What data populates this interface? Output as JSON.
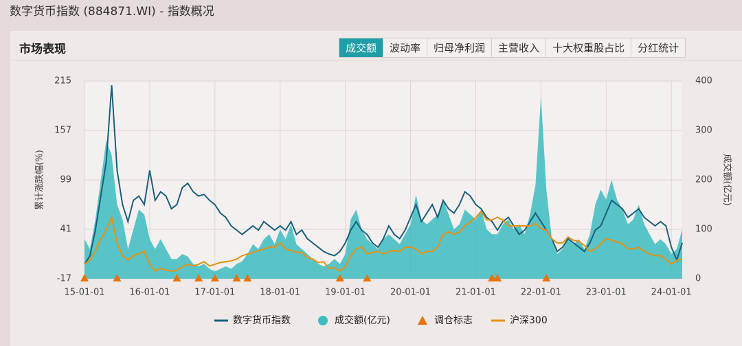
{
  "page_title": "数字货币指数 (884871.WI) - 指数概况",
  "panel_title": "市场表现",
  "tabs": [
    "成交额",
    "波动率",
    "归母净利润",
    "主营收入",
    "十大权重股占比",
    "分红统计"
  ],
  "chart_data": {
    "type": "line",
    "ylabel": "累计涨跌幅(%)",
    "y2label": "成交额(亿元)",
    "ylim": [
      -17,
      215
    ],
    "yticks": [
      -17,
      41,
      99,
      157,
      215
    ],
    "y2lim": [
      0,
      400
    ],
    "y2ticks": [
      0,
      100,
      200,
      300,
      400
    ],
    "grid": true,
    "x": [
      "15-01-01",
      "15-02-01",
      "15-03-01",
      "15-04-01",
      "15-05-01",
      "15-06-01",
      "15-07-01",
      "15-08-01",
      "15-09-01",
      "15-10-01",
      "15-11-01",
      "15-12-01",
      "16-01-01",
      "16-02-01",
      "16-03-01",
      "16-04-01",
      "16-05-01",
      "16-06-01",
      "16-07-01",
      "16-08-01",
      "16-09-01",
      "16-10-01",
      "16-11-01",
      "16-12-01",
      "17-01-01",
      "17-02-01",
      "17-03-01",
      "17-04-01",
      "17-05-01",
      "17-06-01",
      "17-07-01",
      "17-08-01",
      "17-09-01",
      "17-10-01",
      "17-11-01",
      "17-12-01",
      "18-01-01",
      "18-02-01",
      "18-03-01",
      "18-04-01",
      "18-05-01",
      "18-06-01",
      "18-07-01",
      "18-08-01",
      "18-09-01",
      "18-10-01",
      "18-11-01",
      "18-12-01",
      "19-01-01",
      "19-02-01",
      "19-03-01",
      "19-04-01",
      "19-05-01",
      "19-06-01",
      "19-07-01",
      "19-08-01",
      "19-09-01",
      "19-10-01",
      "19-11-01",
      "19-12-01",
      "20-01-01",
      "20-02-01",
      "20-03-01",
      "20-04-01",
      "20-05-01",
      "20-06-01",
      "20-07-01",
      "20-08-01",
      "20-09-01",
      "20-10-01",
      "20-11-01",
      "20-12-01",
      "21-01-01",
      "21-02-01",
      "21-03-01",
      "21-04-01",
      "21-05-01",
      "21-06-01",
      "21-07-01",
      "21-08-01",
      "21-09-01",
      "21-10-01",
      "21-11-01",
      "21-12-01",
      "22-01-01",
      "22-02-01",
      "22-03-01",
      "22-04-01",
      "22-05-01",
      "22-06-01",
      "22-07-01",
      "22-08-01",
      "22-09-01",
      "22-10-01",
      "22-11-01",
      "22-12-01",
      "23-01-01",
      "23-02-01",
      "23-03-01",
      "23-04-01",
      "23-05-01",
      "23-06-01",
      "23-07-01",
      "23-08-01",
      "23-09-01",
      "23-10-01",
      "23-11-01",
      "23-12-01",
      "24-01-01",
      "24-02-01",
      "24-03-01"
    ],
    "xticks": [
      "15-01-01",
      "16-01-01",
      "17-01-01",
      "18-01-01",
      "19-01-01",
      "20-01-01",
      "21-01-01",
      "22-01-01",
      "23-01-01",
      "24-01-01"
    ],
    "series": [
      {
        "name": "数字货币指数",
        "color": "#1b5f7c",
        "kind": "line",
        "values": [
          0,
          10,
          40,
          80,
          120,
          210,
          110,
          70,
          50,
          75,
          80,
          70,
          110,
          75,
          85,
          80,
          65,
          70,
          90,
          95,
          85,
          80,
          82,
          75,
          70,
          60,
          55,
          45,
          40,
          35,
          40,
          45,
          40,
          50,
          45,
          40,
          45,
          40,
          50,
          35,
          40,
          30,
          25,
          20,
          15,
          12,
          10,
          15,
          25,
          40,
          50,
          40,
          35,
          25,
          20,
          30,
          45,
          35,
          30,
          40,
          55,
          70,
          50,
          60,
          70,
          55,
          75,
          65,
          60,
          70,
          85,
          80,
          70,
          65,
          55,
          50,
          40,
          50,
          55,
          45,
          35,
          40,
          50,
          60,
          50,
          40,
          30,
          15,
          20,
          30,
          25,
          20,
          15,
          25,
          40,
          45,
          60,
          75,
          70,
          65,
          55,
          60,
          65,
          55,
          50,
          45,
          50,
          45,
          20,
          5,
          25
        ]
      },
      {
        "name": "成交额(亿元)",
        "color": "#3dbcc0",
        "kind": "area",
        "axis": "y2",
        "values": [
          80,
          60,
          120,
          200,
          280,
          250,
          150,
          120,
          60,
          100,
          140,
          130,
          80,
          60,
          80,
          60,
          40,
          40,
          50,
          45,
          30,
          25,
          30,
          20,
          15,
          20,
          25,
          20,
          30,
          35,
          50,
          70,
          60,
          80,
          90,
          70,
          100,
          80,
          110,
          70,
          60,
          50,
          40,
          30,
          25,
          30,
          40,
          30,
          50,
          120,
          140,
          100,
          80,
          70,
          60,
          80,
          90,
          80,
          70,
          90,
          110,
          170,
          120,
          110,
          120,
          130,
          160,
          130,
          100,
          110,
          140,
          130,
          120,
          140,
          100,
          90,
          90,
          110,
          120,
          100,
          110,
          90,
          130,
          190,
          370,
          180,
          80,
          50,
          60,
          80,
          70,
          80,
          60,
          90,
          150,
          180,
          160,
          200,
          160,
          140,
          110,
          120,
          150,
          110,
          90,
          70,
          80,
          70,
          50,
          60,
          100
        ]
      },
      {
        "name": "调仓标志",
        "color": "#e8730c",
        "kind": "marker",
        "x": [
          "15-01-01",
          "15-07-01",
          "16-06-01",
          "16-10-01",
          "17-01-01",
          "17-05-01",
          "17-07-01",
          "18-12-01",
          "19-05-01",
          "21-04-01",
          "21-05-01",
          "22-02-01"
        ]
      },
      {
        "name": "沪深300",
        "color": "#e8910f",
        "kind": "line",
        "values": [
          0,
          5,
          15,
          30,
          40,
          55,
          25,
          10,
          5,
          10,
          12,
          15,
          0,
          -8,
          -5,
          -7,
          -8,
          -7,
          -3,
          0,
          -2,
          0,
          3,
          -2,
          0,
          2,
          3,
          4,
          6,
          10,
          12,
          14,
          16,
          18,
          20,
          20,
          25,
          18,
          16,
          14,
          14,
          8,
          6,
          2,
          3,
          -5,
          -4,
          -8,
          -3,
          10,
          18,
          20,
          12,
          14,
          15,
          12,
          15,
          16,
          15,
          20,
          20,
          18,
          12,
          15,
          15,
          20,
          35,
          38,
          35,
          38,
          45,
          50,
          55,
          62,
          52,
          52,
          55,
          52,
          45,
          45,
          45,
          45,
          45,
          48,
          42,
          40,
          30,
          25,
          25,
          32,
          28,
          27,
          22,
          15,
          18,
          24,
          30,
          28,
          26,
          24,
          18,
          18,
          20,
          15,
          12,
          10,
          10,
          6,
          0,
          5,
          6
        ]
      }
    ]
  }
}
